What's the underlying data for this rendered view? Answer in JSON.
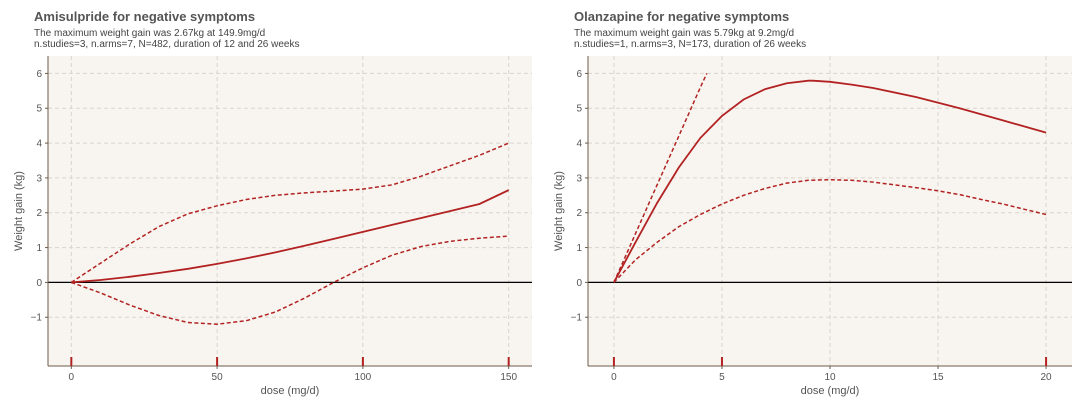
{
  "chart_data": [
    {
      "type": "line",
      "title": "Amisulpride for negative symptoms",
      "subtitle_line1": "The maximum weight gain was 2.67kg at 149.9mg/d",
      "subtitle_line2": "n.studies=3, n.arms=7, N=482, duration of 12 and 26 weeks",
      "xlabel": "dose (mg/d)",
      "ylabel": "Weight gain (kg)",
      "xlim": [
        -8,
        158
      ],
      "ylim": [
        -2.4,
        6.5
      ],
      "xticks": [
        0,
        50,
        100,
        150
      ],
      "yticks": [
        -1,
        0,
        1,
        2,
        3,
        4,
        5,
        6
      ],
      "ytick_labels": [
        "−1",
        "0",
        "1",
        "2",
        "3",
        "4",
        "5",
        "6"
      ],
      "rug": [
        0,
        50,
        100,
        150
      ],
      "series": [
        {
          "name": "estimate",
          "style": "solid",
          "x": [
            0,
            10,
            20,
            30,
            40,
            50,
            60,
            70,
            80,
            90,
            100,
            110,
            120,
            130,
            140,
            150
          ],
          "y": [
            0,
            0.07,
            0.16,
            0.27,
            0.39,
            0.53,
            0.69,
            0.86,
            1.05,
            1.25,
            1.45,
            1.65,
            1.85,
            2.05,
            2.25,
            2.65
          ]
        },
        {
          "name": "upper 95% CI",
          "style": "dashed",
          "x": [
            0,
            10,
            20,
            30,
            40,
            50,
            60,
            70,
            80,
            90,
            100,
            110,
            120,
            130,
            140,
            150
          ],
          "y": [
            0,
            0.55,
            1.1,
            1.6,
            1.97,
            2.2,
            2.38,
            2.5,
            2.57,
            2.62,
            2.68,
            2.8,
            3.05,
            3.35,
            3.65,
            4.0
          ]
        },
        {
          "name": "lower 95% CI",
          "style": "dashed",
          "x": [
            0,
            10,
            20,
            30,
            40,
            50,
            60,
            70,
            80,
            90,
            100,
            110,
            120,
            130,
            140,
            150
          ],
          "y": [
            0,
            -0.3,
            -0.65,
            -0.95,
            -1.15,
            -1.2,
            -1.1,
            -0.85,
            -0.45,
            0.0,
            0.42,
            0.78,
            1.03,
            1.18,
            1.27,
            1.33
          ]
        }
      ]
    },
    {
      "type": "line",
      "title": "Olanzapine for negative symptoms",
      "subtitle_line1": "The maximum weight gain was 5.79kg at 9.2mg/d",
      "subtitle_line2": "n.studies=1, n.arms=3, N=173, duration of 26 weeks",
      "xlabel": "dose (mg/d)",
      "ylabel": "Weight gain (kg)",
      "xlim": [
        -1.2,
        21.2
      ],
      "ylim": [
        -2.4,
        6.5
      ],
      "xticks": [
        0,
        5,
        10,
        15,
        20
      ],
      "yticks": [
        -1,
        0,
        1,
        2,
        3,
        4,
        5,
        6
      ],
      "ytick_labels": [
        "−1",
        "0",
        "1",
        "2",
        "3",
        "4",
        "5",
        "6"
      ],
      "rug": [
        0,
        5,
        20
      ],
      "series": [
        {
          "name": "estimate",
          "style": "solid",
          "x": [
            0,
            1,
            2,
            3,
            4,
            5,
            6,
            7,
            8,
            9,
            9.2,
            10,
            11,
            12,
            14,
            16,
            18,
            20
          ],
          "y": [
            0,
            1.15,
            2.28,
            3.3,
            4.15,
            4.78,
            5.25,
            5.55,
            5.72,
            5.79,
            5.79,
            5.76,
            5.68,
            5.58,
            5.32,
            5.0,
            4.65,
            4.3
          ]
        },
        {
          "name": "upper 95% CI",
          "style": "dashed",
          "x": [
            0,
            1,
            2,
            3,
            4,
            4.3
          ],
          "y": [
            0,
            1.4,
            2.8,
            4.2,
            5.6,
            6.0
          ]
        },
        {
          "name": "lower 95% CI",
          "style": "dashed",
          "x": [
            0,
            1,
            2,
            3,
            4,
            5,
            6,
            7,
            8,
            9,
            10,
            11,
            12,
            13,
            14,
            15,
            16,
            17,
            18,
            19,
            20
          ],
          "y": [
            0,
            0.65,
            1.15,
            1.6,
            1.95,
            2.25,
            2.5,
            2.7,
            2.85,
            2.93,
            2.95,
            2.93,
            2.88,
            2.8,
            2.72,
            2.63,
            2.52,
            2.38,
            2.25,
            2.1,
            1.95
          ]
        }
      ]
    }
  ],
  "colors": {
    "line": "#b22222",
    "background": "#f8f5f0",
    "grid": "#d9d4cc",
    "zero_line": "#000000",
    "axis": "#6b5a4a"
  }
}
